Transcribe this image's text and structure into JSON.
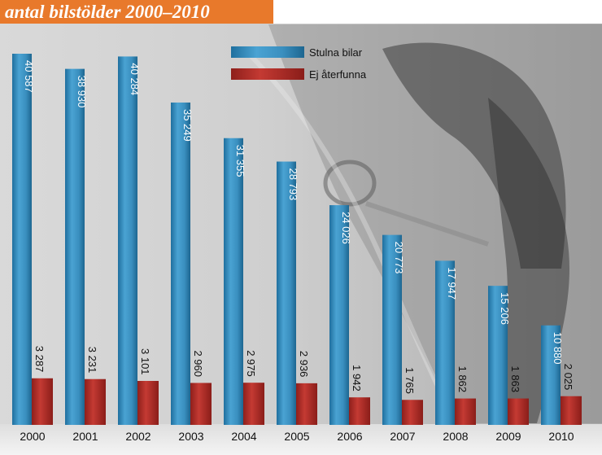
{
  "colors": {
    "title_banner": "#e8792b",
    "stulna_bar": "#3e93c3",
    "ej_bar": "#b8302a",
    "photo_background": "#c9c9c9"
  },
  "chart_data": {
    "type": "bar",
    "title": "antal bilstölder 2000–2010",
    "categories": [
      "2000",
      "2001",
      "2002",
      "2003",
      "2004",
      "2005",
      "2006",
      "2007",
      "2008",
      "2009",
      "2010"
    ],
    "series": [
      {
        "name": "Stulna bilar",
        "values": [
          40587,
          38930,
          40284,
          35249,
          31355,
          28793,
          24026,
          20773,
          17947,
          15206,
          10880
        ],
        "labels": [
          "40 587",
          "38 930",
          "40 284",
          "35 249",
          "31 355",
          "28 793",
          "24 026",
          "20 773",
          "17 947",
          "15 206",
          "10 880"
        ]
      },
      {
        "name": "Ej återfunna",
        "values": [
          3287,
          3231,
          3101,
          2960,
          2975,
          2936,
          1942,
          1765,
          1862,
          1863,
          2025
        ],
        "labels": [
          "3 287",
          "3 231",
          "3 101",
          "2 960",
          "2 975",
          "2 936",
          "1 942",
          "1 765",
          "1 862",
          "1 863",
          "2 025"
        ]
      }
    ],
    "ylim": [
      0,
      42000
    ],
    "legend": "top-center",
    "grid": false
  }
}
